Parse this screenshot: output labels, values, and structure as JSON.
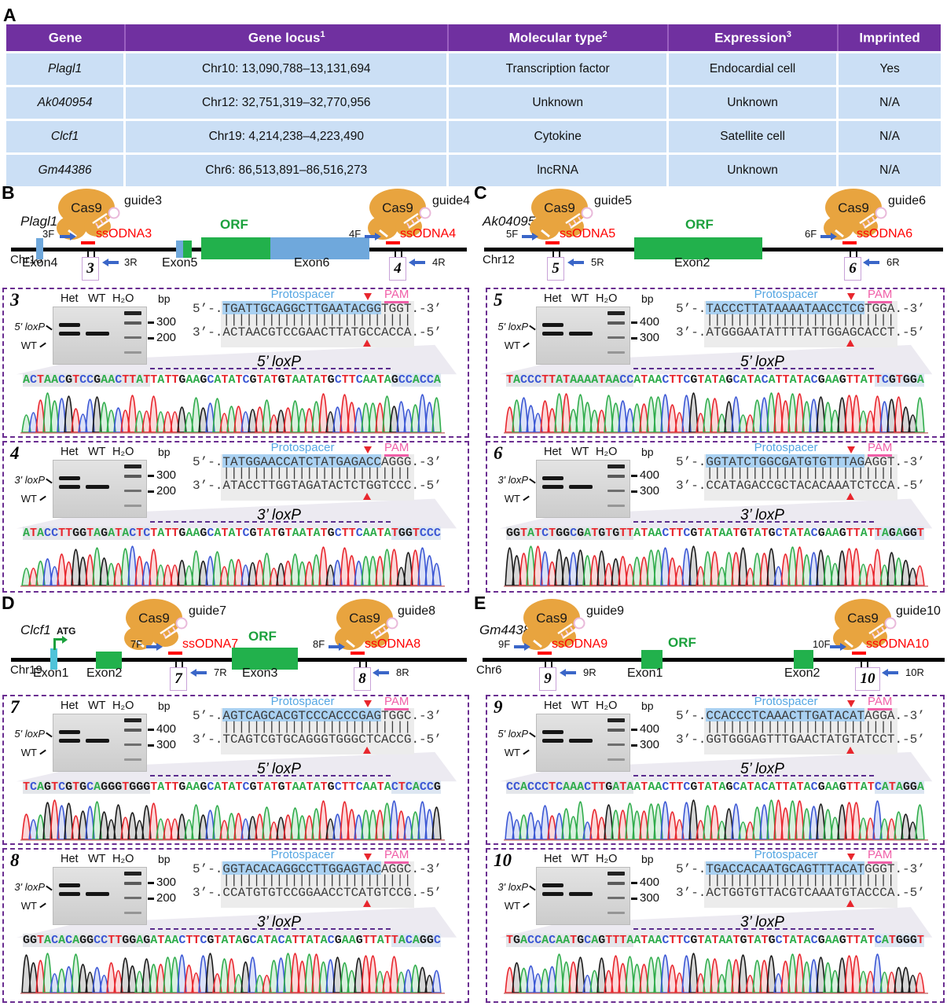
{
  "panel_a": {
    "label": "A",
    "table": {
      "headers": [
        {
          "text": "Gene",
          "sup": ""
        },
        {
          "text": "Gene locus",
          "sup": "1"
        },
        {
          "text": "Molecular type",
          "sup": "2"
        },
        {
          "text": "Expression",
          "sup": "3"
        },
        {
          "text": "Imprinted",
          "sup": ""
        }
      ],
      "rows": [
        [
          "Plagl1",
          "Chr10: 13,090,788–13,131,694",
          "Transcription factor",
          "Endocardial cell",
          "Yes"
        ],
        [
          "Ak040954",
          "Chr12: 32,751,319–32,770,956",
          "Unknown",
          "Unknown",
          "N/A"
        ],
        [
          "Clcf1",
          "Chr19: 4,214,238–4,223,490",
          "Cytokine",
          "Satellite cell",
          "N/A"
        ],
        [
          "Gm44386",
          "Chr6: 86,513,891–86,516,273",
          "lncRNA",
          "Unknown",
          "N/A"
        ]
      ]
    }
  },
  "diagrams": [
    {
      "label": "B",
      "gene": "Plagl1",
      "chr": "Chr10",
      "cas9": "Cas9",
      "orf": "ORF",
      "guides": [
        "guide3",
        "guide4"
      ],
      "ssodna": [
        "ssODNA3",
        "ssODNA4"
      ],
      "primers": [
        "3F",
        "3R",
        "4F",
        "4R"
      ],
      "boxes": [
        "3",
        "4"
      ],
      "exons": [
        "Exon4",
        "Exon5",
        "Exon6"
      ]
    },
    {
      "label": "C",
      "gene": "Ak040954",
      "chr": "Chr12",
      "cas9": "Cas9",
      "orf": "ORF",
      "guides": [
        "guide5",
        "guide6"
      ],
      "ssodna": [
        "ssODNA5",
        "ssODNA6"
      ],
      "primers": [
        "5F",
        "5R",
        "6F",
        "6R"
      ],
      "boxes": [
        "5",
        "6"
      ],
      "exons": [
        "Exon2"
      ]
    },
    {
      "label": "D",
      "gene": "Clcf1",
      "chr": "Chr19",
      "cas9": "Cas9",
      "orf": "ORF",
      "atg": "ATG",
      "guides": [
        "guide7",
        "guide8"
      ],
      "ssodna": [
        "ssODNA7",
        "ssODNA8"
      ],
      "primers": [
        "7F",
        "7R",
        "8F",
        "8R"
      ],
      "boxes": [
        "7",
        "8"
      ],
      "exons": [
        "Exon1",
        "Exon2",
        "Exon3"
      ]
    },
    {
      "label": "E",
      "gene": "Gm44386",
      "chr": "Chr6",
      "cas9": "Cas9",
      "orf": "ORF",
      "guides": [
        "guide9",
        "guide10"
      ],
      "ssodna": [
        "ssODNA9",
        "ssODNA10"
      ],
      "primers": [
        "9F",
        "9R",
        "10F",
        "10R"
      ],
      "boxes": [
        "9",
        "10"
      ],
      "exons": [
        "Exon1",
        "Exon2"
      ]
    }
  ],
  "subpanels": [
    {
      "num": "3",
      "lanes": [
        "Het",
        "WT",
        "H₂O"
      ],
      "bp_label": "bp",
      "markers": [
        "300",
        "200"
      ],
      "band_labels": [
        "5' loxP",
        "WT"
      ],
      "proto_label": "Protospacer",
      "pam_label": "PAM",
      "top_prefix": "5’-.",
      "top_seq": "TGATTGCAGGCTTGAATACGGTGGT",
      "top_suffix": ".-3’",
      "bottom_prefix": "3’-.",
      "bottom_seq": "ACTAACGTCCGAACTTATGCCACCA",
      "bottom_suffix": ".-5’",
      "loxp_label": "5’ loxP",
      "read_left": "ACTAACGTCCGAACTTAT",
      "read_insert": "TATTGAAGCATATCGTATGTAATATGCTTCAATA",
      "read_right": "GCCACCA"
    },
    {
      "num": "4",
      "lanes": [
        "Het",
        "WT",
        "H₂O"
      ],
      "bp_label": "bp",
      "markers": [
        "300",
        "200"
      ],
      "band_labels": [
        "3' loxP",
        "WT"
      ],
      "proto_label": "Protospacer",
      "pam_label": "PAM",
      "top_prefix": "5’-.",
      "top_seq": "TATGGAACCATCTATGAGACCAGGG",
      "top_suffix": ".-3’",
      "bottom_prefix": "3’-.",
      "bottom_seq": "ATACCTTGGTAGATACTCTGGTCCC",
      "bottom_suffix": ".-5’",
      "loxp_label": "3’ loxP",
      "read_left": "ATACCTTGGTAGATACTC",
      "read_insert": "TATTGAAGCATATCGTATGTAATATGCTTCAATA",
      "read_right": "TGGTCCC"
    },
    {
      "num": "5",
      "lanes": [
        "Het",
        "WT",
        "H₂O"
      ],
      "bp_label": "bp",
      "markers": [
        "400",
        "300"
      ],
      "band_labels": [
        "5' loxP",
        "WT"
      ],
      "proto_label": "Protospacer",
      "pam_label": "PAM",
      "top_prefix": "5’-.",
      "top_seq": "TACCCTTATAAAATAACCTCGTGGA",
      "top_suffix": ".-3’",
      "bottom_prefix": "3’-.",
      "bottom_seq": "ATGGGAATATTTTATTGGAGCACCT",
      "bottom_suffix": ".-5’",
      "loxp_label": "5’ loxP",
      "read_left": "TACCCTTATAAAATAACC",
      "read_insert": "ATAACTTCGTATAGCATACATTATACGAAGTTAT",
      "read_right": "TCGTGGA"
    },
    {
      "num": "6",
      "lanes": [
        "Het",
        "WT",
        "H₂O"
      ],
      "bp_label": "bp",
      "markers": [
        "400",
        "300"
      ],
      "band_labels": [
        "3' loxP",
        "WT"
      ],
      "proto_label": "Protospacer",
      "pam_label": "PAM",
      "top_prefix": "5’-.",
      "top_seq": "GGTATCTGGCGATGTGTTTAGAGGT",
      "top_suffix": ".-3’",
      "bottom_prefix": "3’-.",
      "bottom_seq": "CCATAGACCGCTACACAAATCTCCA",
      "bottom_suffix": ".-5’",
      "loxp_label": "3’ loxP",
      "read_left": "GGTATCTGGCGATGTGTT",
      "read_insert": "ATAACTTCGTATAATGTATGCTATACGAAGTTAT",
      "read_right": "TAGAGGT"
    },
    {
      "num": "7",
      "lanes": [
        "Het",
        "WT",
        "H₂O"
      ],
      "bp_label": "bp",
      "markers": [
        "400",
        "300"
      ],
      "band_labels": [
        "5' loxP",
        "WT"
      ],
      "proto_label": "Protospacer",
      "pam_label": "PAM",
      "top_prefix": "5’-.",
      "top_seq": "AGTCAGCACGTCCCACCCGAGTGGC",
      "top_suffix": ".-3’",
      "bottom_prefix": "3’-.",
      "bottom_seq": "TCAGTCGTGCAGGGTGGGCTCACCG",
      "bottom_suffix": ".-5’",
      "loxp_label": "5’ loxP",
      "read_left": "TCAGTCGTGCAGGGTGGG",
      "read_insert": "TATTGAAGCATATCGTATGTAATATGCTTCAATA",
      "read_right": "CTCACCG"
    },
    {
      "num": "8",
      "lanes": [
        "Het",
        "WT",
        "H₂O"
      ],
      "bp_label": "bp",
      "markers": [
        "300",
        "200"
      ],
      "band_labels": [
        "3' loxP",
        "WT"
      ],
      "proto_label": "Protospacer",
      "pam_label": "PAM",
      "top_prefix": "5’-.",
      "top_seq": "GGTACACAGGCCTTGGAGTACAGGC",
      "top_suffix": ".-3’",
      "bottom_prefix": "3’-.",
      "bottom_seq": "CCATGTGTCCGGAACCTCATGTCCG",
      "bottom_suffix": ".-5’",
      "loxp_label": "3’ loxP",
      "read_left": "GGTACACAGGCCTTGGAG",
      "read_insert": "ATAACTTCGTATAGCATACATTATACGAAGTTAT",
      "read_right": "TACAGGC"
    },
    {
      "num": "9",
      "lanes": [
        "Het",
        "WT",
        "H₂O"
      ],
      "bp_label": "bp",
      "markers": [
        "400",
        "300"
      ],
      "band_labels": [
        "5' loxP",
        "WT"
      ],
      "proto_label": "Protospacer",
      "pam_label": "PAM",
      "top_prefix": "5’-.",
      "top_seq": "CCACCCTCAAACTTGATACATAGGA",
      "top_suffix": ".-3’",
      "bottom_prefix": "3’-.",
      "bottom_seq": "GGTGGGAGTTTGAACTATGTATCCT",
      "bottom_suffix": ".-5’",
      "loxp_label": "5’ loxP",
      "read_left": "CCACCCTCAAACTTGATA",
      "read_insert": "ATAACTTCGTATAGCATACATTATACGAAGTTAT",
      "read_right": "CATAGGA"
    },
    {
      "num": "10",
      "lanes": [
        "Het",
        "WT",
        "H₂O"
      ],
      "bp_label": "bp",
      "markers": [
        "400",
        "300"
      ],
      "band_labels": [
        "3' loxP",
        "WT"
      ],
      "proto_label": "Protospacer",
      "pam_label": "PAM",
      "top_prefix": "5’-.",
      "top_seq": "TGACCACAATGCAGTTTACATGGGT",
      "top_suffix": ".-3’",
      "bottom_prefix": "3’-.",
      "bottom_seq": "ACTGGTGTTACGTCAAATGTACCCA",
      "bottom_suffix": ".-5’",
      "loxp_label": "3’ loxP",
      "read_left": "TGACCACAATGCAGTTTA",
      "read_insert": "ATAACTTCGTATAATGTATGCTATACGAAGTTAT",
      "read_right": "CATGGGT"
    }
  ],
  "colors": {
    "header_purple": "#7030A0",
    "row_blue": "#CBDFF5",
    "dash_purple": "#6A2D91",
    "exon_green": "#22B14C",
    "exon_blue": "#6FA8DC",
    "exon_cyan": "#4FC3D9",
    "cas9_orange": "#E8A43F",
    "ssodna_red": "#FF0000",
    "primer_blue": "#3A66C8",
    "proto_blue": "#56A7E3",
    "pam_pink": "#F05FA8",
    "base_A": "#2FAC4B",
    "base_C": "#3A56D4",
    "base_G": "#1A1A1A",
    "base_T": "#E8262D"
  }
}
